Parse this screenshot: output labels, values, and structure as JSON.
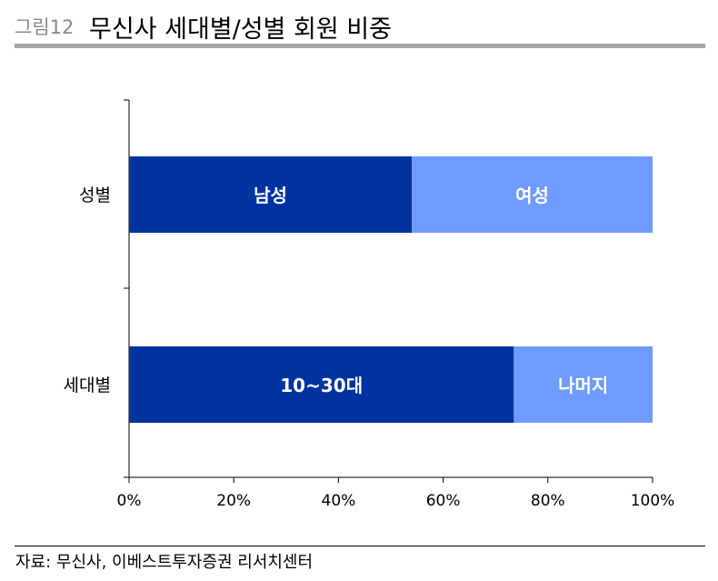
{
  "figure": {
    "label": "그림12",
    "title": "무신사 세대별/성별 회원 비중",
    "source": "자료: 무신사, 이베스트투자증권 리서치센터"
  },
  "colors": {
    "dark_blue": "#0033a0",
    "light_blue": "#6f9bfe",
    "header_rule": "#a6a6a6"
  },
  "chart_data": {
    "type": "bar",
    "orientation": "horizontal",
    "stacked": true,
    "percent": true,
    "categories": [
      "성별",
      "세대별"
    ],
    "segments": [
      [
        {
          "label": "남성",
          "value": 54,
          "color": "#0033a0"
        },
        {
          "label": "여성",
          "value": 46,
          "color": "#6f9bfe"
        }
      ],
      [
        {
          "label": "10~30대",
          "value": 73.5,
          "color": "#0033a0"
        },
        {
          "label": "나머지",
          "value": 26.5,
          "color": "#6f9bfe"
        }
      ]
    ],
    "xlim": [
      0,
      100
    ],
    "xticks": [
      0,
      20,
      40,
      60,
      80,
      100
    ],
    "xtick_labels": [
      "0%",
      "20%",
      "40%",
      "60%",
      "80%",
      "100%"
    ],
    "xlabel": "",
    "ylabel": "",
    "grid": false,
    "legend": "none"
  }
}
